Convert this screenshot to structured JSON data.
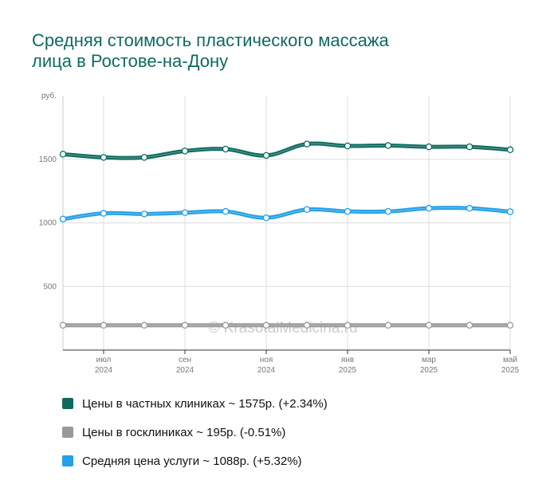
{
  "title": {
    "line1": "Средняя стоимость пластического массажа",
    "line2": "лица в Ростове-на-Дону"
  },
  "watermark": "© KrasotaiMedicina.ru",
  "chart_data": {
    "type": "line",
    "unit_label": "руб.",
    "ylim": [
      0,
      2000
    ],
    "yticks": [
      500,
      1000,
      1500
    ],
    "x": [
      "2024-06",
      "2024-07",
      "2024-08",
      "2024-09",
      "2024-10",
      "2024-11",
      "2024-12",
      "2025-01",
      "2025-02",
      "2025-03",
      "2025-04",
      "2025-05"
    ],
    "x_tick_labels": [
      {
        "month": "июл",
        "year": "2024",
        "index": 1
      },
      {
        "month": "сен",
        "year": "2024",
        "index": 3
      },
      {
        "month": "ноя",
        "year": "2024",
        "index": 5
      },
      {
        "month": "янв",
        "year": "2025",
        "index": 7
      },
      {
        "month": "мар",
        "year": "2025",
        "index": 9
      },
      {
        "month": "май",
        "year": "2025",
        "index": 11
      }
    ],
    "grid": true,
    "legend_position": "bottom",
    "series": [
      {
        "name": "Цены в частных клиниках",
        "color": "#0d6b5e",
        "values": [
          1540,
          1515,
          1515,
          1565,
          1580,
          1530,
          1620,
          1605,
          1608,
          1598,
          1598,
          1575
        ]
      },
      {
        "name": "Цены в госклиниках",
        "color": "#999999",
        "values": [
          195,
          195,
          195,
          195,
          195,
          195,
          195,
          195,
          195,
          195,
          195,
          195
        ]
      },
      {
        "name": "Средняя цена услуги",
        "color": "#23a0e6",
        "values": [
          1030,
          1075,
          1070,
          1080,
          1090,
          1040,
          1105,
          1090,
          1090,
          1115,
          1115,
          1088
        ]
      }
    ]
  },
  "legend": [
    {
      "label": "Цены в частных клиниках ~ 1575р. (+2.34%)",
      "color": "#0d6b5e"
    },
    {
      "label": "Цены в госклиниках ~ 195р. (-0.51%)",
      "color": "#999999"
    },
    {
      "label": "Средняя цена услуги ~ 1088р. (+5.32%)",
      "color": "#23a0e6"
    }
  ]
}
